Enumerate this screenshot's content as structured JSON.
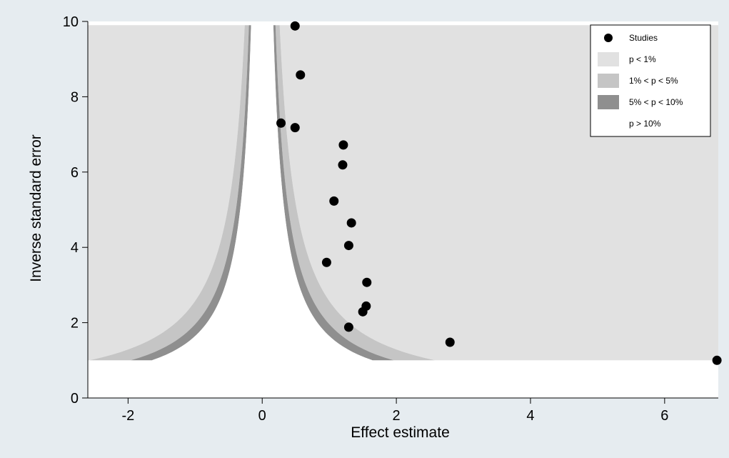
{
  "chart_data": {
    "type": "scatter",
    "title": "",
    "xlabel": "Effect estimate",
    "ylabel": "Inverse standard error",
    "xlim": [
      -2.6,
      6.8
    ],
    "ylim": [
      0,
      10
    ],
    "x_ticks": [
      -2,
      0,
      2,
      4,
      6
    ],
    "y_ticks": [
      0,
      2,
      4,
      6,
      8,
      10
    ],
    "x_tick_labels": [
      "-2",
      "0",
      "2",
      "4",
      "6"
    ],
    "y_tick_labels": [
      "0",
      "2",
      "4",
      "6",
      "8",
      "10"
    ],
    "grid": false,
    "legend_position": "top-right",
    "contour_y_range": [
      1,
      9.9
    ],
    "contour_z_values": {
      "p_10": 1.645,
      "p_5": 1.96,
      "p_1": 2.576
    },
    "series": [
      {
        "name": "Studies",
        "points": [
          {
            "x": 0.49,
            "y": 9.88
          },
          {
            "x": 0.57,
            "y": 8.58
          },
          {
            "x": 0.28,
            "y": 7.3
          },
          {
            "x": 0.49,
            "y": 7.18
          },
          {
            "x": 1.21,
            "y": 6.72
          },
          {
            "x": 1.2,
            "y": 6.19
          },
          {
            "x": 1.07,
            "y": 5.23
          },
          {
            "x": 1.33,
            "y": 4.65
          },
          {
            "x": 1.29,
            "y": 4.05
          },
          {
            "x": 0.96,
            "y": 3.6
          },
          {
            "x": 1.56,
            "y": 3.07
          },
          {
            "x": 1.55,
            "y": 2.44
          },
          {
            "x": 1.5,
            "y": 2.29
          },
          {
            "x": 1.29,
            "y": 1.88
          },
          {
            "x": 2.8,
            "y": 1.48
          },
          {
            "x": 6.78,
            "y": 1.0
          }
        ]
      }
    ],
    "legend": [
      {
        "label": "Studies",
        "symbol": "dot",
        "color": "#000000"
      },
      {
        "label": "p < 1%",
        "symbol": "swatch",
        "color": "#e1e1e1"
      },
      {
        "label": "1% < p < 5%",
        "symbol": "swatch",
        "color": "#c5c5c5"
      },
      {
        "label": "5% < p < 10%",
        "symbol": "swatch",
        "color": "#8f8f8f"
      },
      {
        "label": "p > 10%",
        "symbol": "swatch",
        "color": "#ffffff"
      }
    ],
    "colors": {
      "background": "#e6ecf0",
      "plot_background": "#ffffff",
      "p_lt_1": "#e1e1e1",
      "p_1_5": "#c5c5c5",
      "p_5_10": "#8f8f8f",
      "p_gt_10": "#ffffff",
      "points": "#000000"
    }
  }
}
